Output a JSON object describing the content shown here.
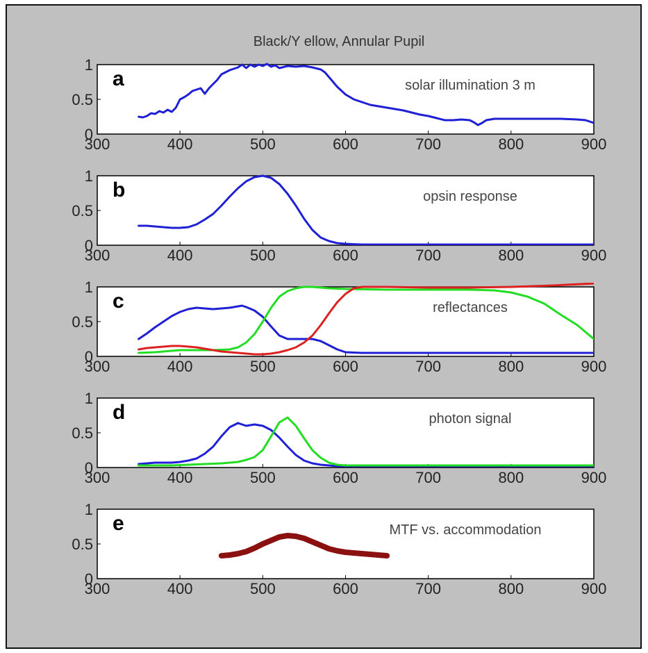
{
  "figure_title": "Black/Y ellow, Annular Pupil",
  "chart_data": [
    {
      "type": "line",
      "panel_label": "a",
      "annotation": "solar illumination 3 m",
      "xlim": [
        300,
        900
      ],
      "ylim": [
        0,
        1
      ],
      "x_ticks": [
        "300",
        "400",
        "500",
        "600",
        "700",
        "800",
        "900"
      ],
      "y_ticks": [
        "0",
        "0.5",
        "1"
      ],
      "series": [
        {
          "color": "#1f1fd6",
          "stroke": 3,
          "x": [
            350,
            355,
            360,
            365,
            370,
            375,
            380,
            385,
            390,
            395,
            400,
            405,
            410,
            415,
            420,
            425,
            430,
            435,
            440,
            445,
            450,
            460,
            470,
            475,
            480,
            485,
            490,
            495,
            500,
            505,
            510,
            515,
            520,
            530,
            540,
            550,
            560,
            570,
            575,
            580,
            590,
            600,
            610,
            620,
            630,
            640,
            650,
            660,
            670,
            680,
            690,
            700,
            710,
            720,
            730,
            740,
            750,
            755,
            760,
            765,
            770,
            780,
            800,
            820,
            840,
            860,
            880,
            890,
            900
          ],
          "y": [
            0.25,
            0.24,
            0.26,
            0.3,
            0.29,
            0.33,
            0.31,
            0.35,
            0.32,
            0.38,
            0.5,
            0.53,
            0.57,
            0.62,
            0.64,
            0.66,
            0.58,
            0.66,
            0.72,
            0.78,
            0.86,
            0.92,
            0.96,
            1.0,
            0.95,
            1.0,
            0.97,
            1.0,
            0.98,
            1.01,
            0.97,
            0.99,
            0.95,
            0.98,
            0.97,
            0.98,
            0.96,
            0.93,
            0.89,
            0.82,
            0.68,
            0.57,
            0.5,
            0.46,
            0.42,
            0.4,
            0.38,
            0.36,
            0.34,
            0.31,
            0.28,
            0.26,
            0.23,
            0.2,
            0.2,
            0.21,
            0.2,
            0.17,
            0.13,
            0.16,
            0.2,
            0.22,
            0.22,
            0.22,
            0.22,
            0.22,
            0.21,
            0.2,
            0.16
          ]
        }
      ]
    },
    {
      "type": "line",
      "panel_label": "b",
      "annotation": "opsin response",
      "xlim": [
        300,
        900
      ],
      "ylim": [
        0,
        1
      ],
      "x_ticks": [
        "300",
        "400",
        "500",
        "600",
        "700",
        "800",
        "900"
      ],
      "y_ticks": [
        "0",
        "0.5",
        "1"
      ],
      "series": [
        {
          "color": "#1f1fd6",
          "stroke": 3,
          "x": [
            350,
            360,
            370,
            380,
            390,
            400,
            410,
            420,
            430,
            440,
            450,
            460,
            470,
            480,
            490,
            500,
            510,
            520,
            530,
            540,
            550,
            560,
            570,
            580,
            590,
            600,
            620,
            650,
            700,
            750,
            800,
            850,
            900
          ],
          "y": [
            0.28,
            0.28,
            0.27,
            0.26,
            0.25,
            0.25,
            0.26,
            0.3,
            0.37,
            0.45,
            0.57,
            0.7,
            0.82,
            0.92,
            0.98,
            1.0,
            0.97,
            0.88,
            0.74,
            0.57,
            0.38,
            0.22,
            0.11,
            0.06,
            0.03,
            0.02,
            0.01,
            0.01,
            0.01,
            0.01,
            0.01,
            0.01,
            0.01
          ]
        }
      ]
    },
    {
      "type": "line",
      "panel_label": "c",
      "annotation": "reflectances",
      "xlim": [
        300,
        900
      ],
      "ylim": [
        0,
        1
      ],
      "x_ticks": [
        "300",
        "400",
        "500",
        "600",
        "700",
        "800",
        "900"
      ],
      "y_ticks": [
        "0",
        "0.5",
        "1"
      ],
      "series": [
        {
          "color": "#1f1fd6",
          "stroke": 3,
          "x": [
            350,
            360,
            370,
            380,
            390,
            400,
            410,
            420,
            430,
            440,
            450,
            460,
            470,
            475,
            480,
            490,
            500,
            510,
            520,
            530,
            540,
            550,
            560,
            570,
            580,
            590,
            600,
            620,
            650,
            700,
            750,
            800,
            850,
            900
          ],
          "y": [
            0.25,
            0.33,
            0.42,
            0.5,
            0.58,
            0.64,
            0.68,
            0.7,
            0.69,
            0.68,
            0.69,
            0.7,
            0.72,
            0.73,
            0.71,
            0.66,
            0.57,
            0.43,
            0.3,
            0.25,
            0.25,
            0.25,
            0.25,
            0.22,
            0.16,
            0.1,
            0.06,
            0.05,
            0.05,
            0.05,
            0.05,
            0.05,
            0.05,
            0.05
          ]
        },
        {
          "color": "#22dd22",
          "stroke": 3,
          "x": [
            350,
            370,
            390,
            400,
            420,
            440,
            460,
            470,
            480,
            490,
            500,
            510,
            520,
            530,
            540,
            550,
            560,
            570,
            580,
            600,
            650,
            700,
            750,
            780,
            800,
            820,
            840,
            860,
            880,
            900
          ],
          "y": [
            0.05,
            0.06,
            0.08,
            0.09,
            0.09,
            0.09,
            0.1,
            0.13,
            0.2,
            0.32,
            0.5,
            0.7,
            0.86,
            0.94,
            0.98,
            1.0,
            1.0,
            0.99,
            0.98,
            0.97,
            0.96,
            0.96,
            0.96,
            0.95,
            0.92,
            0.86,
            0.76,
            0.6,
            0.45,
            0.25
          ]
        },
        {
          "color": "#dd2020",
          "stroke": 3,
          "x": [
            350,
            360,
            370,
            380,
            390,
            400,
            410,
            420,
            430,
            440,
            450,
            460,
            470,
            480,
            490,
            500,
            510,
            520,
            530,
            540,
            550,
            560,
            570,
            580,
            590,
            600,
            610,
            620,
            630,
            650,
            700,
            750,
            800,
            850,
            900
          ],
          "y": [
            0.1,
            0.12,
            0.13,
            0.14,
            0.15,
            0.15,
            0.14,
            0.13,
            0.11,
            0.09,
            0.07,
            0.06,
            0.05,
            0.04,
            0.03,
            0.03,
            0.04,
            0.06,
            0.09,
            0.13,
            0.2,
            0.3,
            0.45,
            0.62,
            0.78,
            0.9,
            0.98,
            1.0,
            1.0,
            1.0,
            0.99,
            0.99,
            1.0,
            1.02,
            1.05
          ]
        }
      ]
    },
    {
      "type": "line",
      "panel_label": "d",
      "annotation": "photon signal",
      "xlim": [
        300,
        900
      ],
      "ylim": [
        0,
        1
      ],
      "x_ticks": [
        "300",
        "400",
        "500",
        "600",
        "700",
        "800",
        "900"
      ],
      "y_ticks": [
        "0",
        "0.5",
        "1"
      ],
      "series": [
        {
          "color": "#1f1fd6",
          "stroke": 3,
          "x": [
            350,
            360,
            370,
            380,
            390,
            400,
            410,
            420,
            430,
            440,
            450,
            460,
            470,
            480,
            490,
            500,
            510,
            520,
            530,
            540,
            550,
            560,
            570,
            580,
            590,
            600,
            650,
            700,
            750,
            800,
            850,
            900
          ],
          "y": [
            0.05,
            0.06,
            0.07,
            0.07,
            0.07,
            0.08,
            0.1,
            0.13,
            0.2,
            0.3,
            0.45,
            0.58,
            0.64,
            0.6,
            0.62,
            0.6,
            0.54,
            0.43,
            0.3,
            0.18,
            0.1,
            0.06,
            0.04,
            0.03,
            0.02,
            0.02,
            0.02,
            0.02,
            0.02,
            0.02,
            0.02,
            0.02
          ]
        },
        {
          "color": "#22dd22",
          "stroke": 3,
          "x": [
            350,
            370,
            390,
            410,
            430,
            450,
            470,
            480,
            490,
            500,
            510,
            520,
            530,
            540,
            550,
            560,
            570,
            580,
            590,
            600,
            650,
            700,
            750,
            800,
            850,
            900
          ],
          "y": [
            0.03,
            0.03,
            0.03,
            0.04,
            0.05,
            0.06,
            0.08,
            0.11,
            0.15,
            0.25,
            0.45,
            0.65,
            0.72,
            0.6,
            0.42,
            0.25,
            0.14,
            0.07,
            0.04,
            0.03,
            0.03,
            0.03,
            0.03,
            0.03,
            0.03,
            0.03
          ]
        }
      ]
    },
    {
      "type": "line",
      "panel_label": "e",
      "annotation": "MTF vs. accommodation",
      "xlim": [
        300,
        900
      ],
      "ylim": [
        0,
        1
      ],
      "x_ticks": [
        "300",
        "400",
        "500",
        "600",
        "700",
        "800",
        "900"
      ],
      "y_ticks": [
        "0",
        "0.5",
        "1"
      ],
      "series": [
        {
          "color": "#8b1010",
          "stroke": 8,
          "x": [
            450,
            460,
            470,
            480,
            490,
            500,
            510,
            520,
            530,
            540,
            550,
            560,
            570,
            580,
            590,
            600,
            610,
            620,
            630,
            640,
            650
          ],
          "y": [
            0.33,
            0.34,
            0.36,
            0.39,
            0.44,
            0.5,
            0.55,
            0.6,
            0.62,
            0.61,
            0.58,
            0.53,
            0.48,
            0.43,
            0.4,
            0.38,
            0.37,
            0.36,
            0.35,
            0.34,
            0.33
          ]
        }
      ]
    }
  ]
}
